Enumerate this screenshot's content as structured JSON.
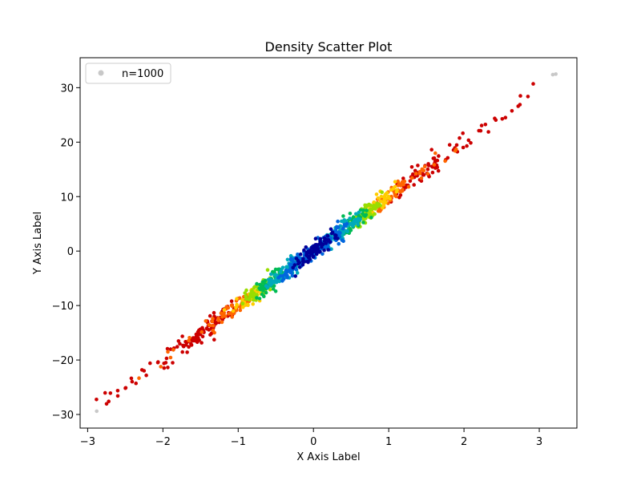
{
  "chart_data": {
    "type": "scatter",
    "title": "Density Scatter Plot",
    "xlabel": "X Axis Label",
    "ylabel": "Y Axis Label",
    "xlim": [
      -3.1,
      3.5
    ],
    "ylim": [
      -32.5,
      35.5
    ],
    "x_ticks": [
      -3,
      -2,
      -1,
      0,
      1,
      2,
      3
    ],
    "y_ticks": [
      -30,
      -20,
      -10,
      0,
      10,
      20,
      30
    ],
    "x_tick_labels": [
      "−3",
      "−2",
      "−1",
      "0",
      "1",
      "2",
      "3"
    ],
    "y_tick_labels": [
      "−30",
      "−20",
      "−10",
      "0",
      "10",
      "20",
      "30"
    ],
    "grid": false,
    "legend": {
      "position": "top-left",
      "entries": [
        {
          "label": "n=1000",
          "color": "#c8c8c8"
        }
      ]
    },
    "colormap": [
      "#cc0000",
      "#ff6600",
      "#ffcc00",
      "#99dd00",
      "#00bb55",
      "#00aabb",
      "#0066dd",
      "#000099"
    ],
    "series": [
      {
        "n": 1000,
        "relationship": {
          "slope": 10,
          "intercept": 0
        },
        "x_range": [
          -2.9,
          3.2
        ],
        "outliers": [
          {
            "x": -2.88,
            "y": -29.4,
            "color": "#c8c8c8"
          },
          {
            "x": 3.18,
            "y": 32.4,
            "color": "#c8c8c8"
          },
          {
            "x": 3.22,
            "y": 32.5,
            "color": "#c8c8c8"
          },
          {
            "x": 2.92,
            "y": 30.7,
            "color": "#cc0000"
          },
          {
            "x": 2.75,
            "y": 28.5,
            "color": "#cc0000"
          },
          {
            "x": 2.72,
            "y": 26.6,
            "color": "#cc0000"
          },
          {
            "x": 2.55,
            "y": 24.5,
            "color": "#cc0000"
          },
          {
            "x": -2.72,
            "y": -27.6,
            "color": "#cc0000"
          },
          {
            "x": -2.6,
            "y": -26.6,
            "color": "#cc0000"
          }
        ]
      }
    ]
  }
}
